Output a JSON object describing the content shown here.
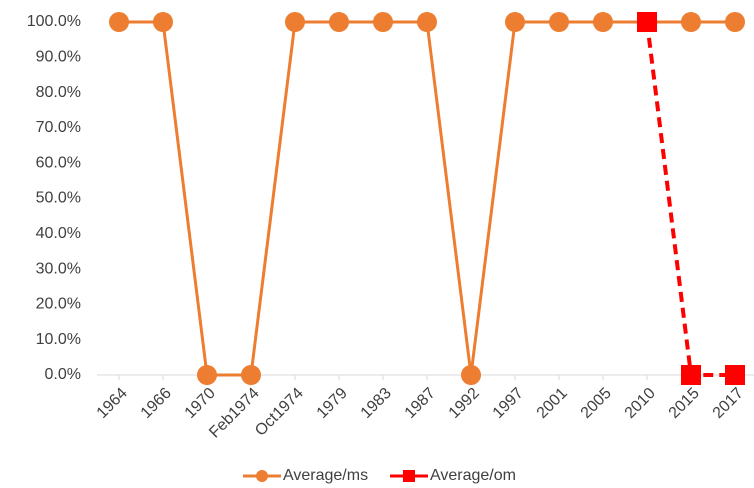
{
  "chart_data": {
    "type": "line",
    "categories": [
      "1964",
      "1966",
      "1970",
      "Feb1974",
      "Oct1974",
      "1979",
      "1983",
      "1987",
      "1992",
      "1997",
      "2001",
      "2005",
      "2010",
      "2015",
      "2017"
    ],
    "series": [
      {
        "name": "Average/ms",
        "color": "#ed7d31",
        "values": [
          100,
          100,
          0,
          0,
          100,
          100,
          100,
          100,
          0,
          100,
          100,
          100,
          100,
          100,
          100
        ]
      },
      {
        "name": "Average/om",
        "color": "#ff0000",
        "values": [
          null,
          null,
          null,
          null,
          null,
          null,
          null,
          null,
          null,
          null,
          null,
          null,
          100,
          0,
          0
        ]
      }
    ],
    "ylim": [
      0,
      100
    ],
    "yticks": [
      {
        "value": 0,
        "label": "0.0%"
      },
      {
        "value": 10,
        "label": "10.0%"
      },
      {
        "value": 20,
        "label": "20.0%"
      },
      {
        "value": 30,
        "label": "30.0%"
      },
      {
        "value": 40,
        "label": "40.0%"
      },
      {
        "value": 50,
        "label": "50.0%"
      },
      {
        "value": 60,
        "label": "60.0%"
      },
      {
        "value": 70,
        "label": "70.0%"
      },
      {
        "value": 80,
        "label": "80.0%"
      },
      {
        "value": 90,
        "label": "90.0%"
      },
      {
        "value": 100,
        "label": "100.0%"
      }
    ],
    "grid": false
  }
}
